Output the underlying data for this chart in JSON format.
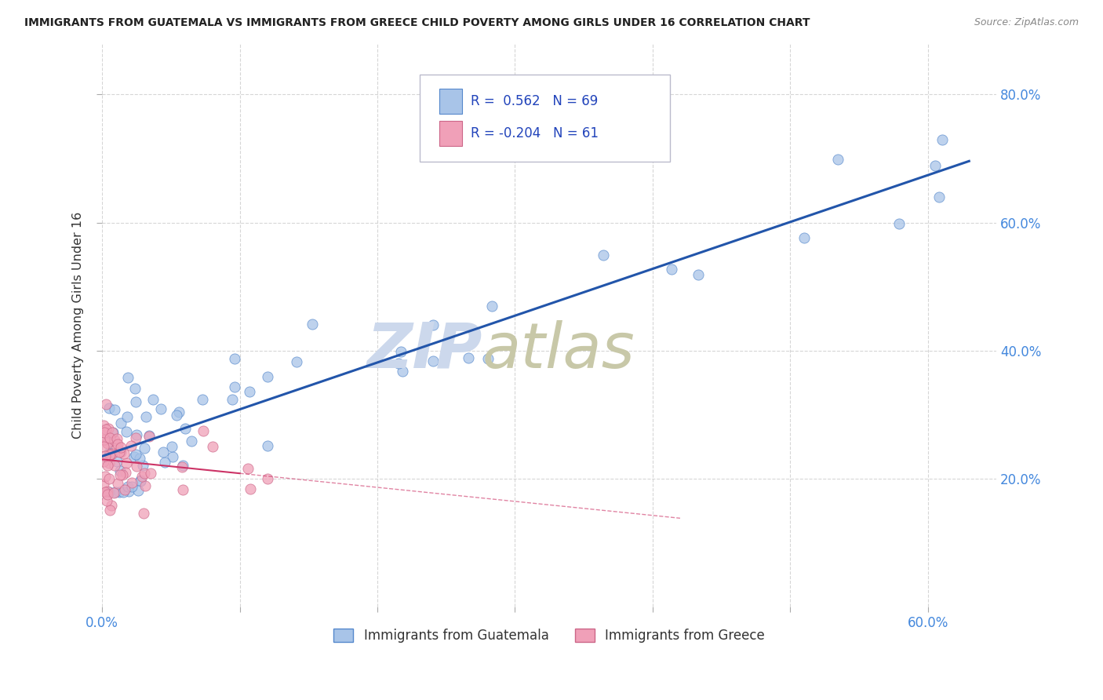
{
  "title": "IMMIGRANTS FROM GUATEMALA VS IMMIGRANTS FROM GREECE CHILD POVERTY AMONG GIRLS UNDER 16 CORRELATION CHART",
  "source": "Source: ZipAtlas.com",
  "ylabel": "Child Poverty Among Girls Under 16",
  "color_guatemala": "#a8c4e8",
  "color_greece": "#f0a0b8",
  "edge_guatemala": "#5588cc",
  "edge_greece": "#cc6688",
  "line_guatemala": "#2255aa",
  "line_greece": "#cc3366",
  "background_color": "#ffffff",
  "watermark_zip_color": "#ccd8ec",
  "watermark_atlas_color": "#c8c8b0",
  "legend_r1": "R =  0.562",
  "legend_n1": "N = 69",
  "legend_r2": "R = -0.204",
  "legend_n2": "N = 61",
  "xlim": [
    0.0,
    0.65
  ],
  "ylim": [
    0.0,
    0.88
  ]
}
